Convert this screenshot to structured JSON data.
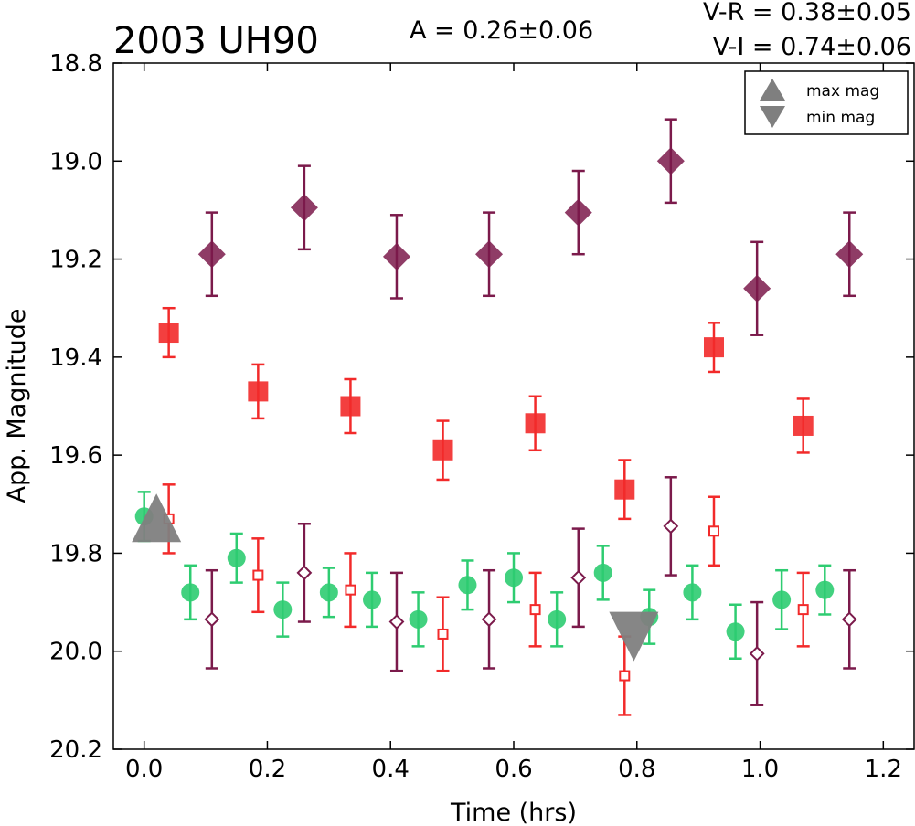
{
  "chart_data": {
    "type": "scatter",
    "title": "2003 UH90",
    "annotations": {
      "amplitude": "A  = 0.26±0.06",
      "v_r": "V-R = 0.38±0.05",
      "v_i": "V-I  = 0.74±0.06"
    },
    "xlabel": "Time (hrs)",
    "ylabel": "App. Magnitude",
    "xlim": [
      -0.05,
      1.25
    ],
    "ylim": [
      20.2,
      18.8
    ],
    "y_inverted": true,
    "xticks": [
      "0.0",
      "0.2",
      "0.4",
      "0.6",
      "0.8",
      "1.0",
      "1.2"
    ],
    "yticks": [
      "18.8",
      "19.0",
      "19.2",
      "19.4",
      "19.6",
      "19.8",
      "20.0",
      "20.2"
    ],
    "grid": false,
    "legend": {
      "position": "top-right",
      "entries": [
        {
          "label": "max mag",
          "marker": "triangle-up",
          "color": "#7f7f7f"
        },
        {
          "label": "min mag",
          "marker": "triangle-down",
          "color": "#7f7f7f"
        }
      ]
    },
    "colors": {
      "V": "#2ecc71",
      "R": "#f22a2a",
      "I": "#7b1a4b",
      "marker_gray": "#7f7f7f"
    },
    "series": [
      {
        "marker": "circle-filled",
        "color": "#2ecc71",
        "points": [
          {
            "x": 0.0,
            "y": 19.725,
            "err": 0.05
          },
          {
            "x": 0.075,
            "y": 19.88,
            "err": 0.055
          },
          {
            "x": 0.15,
            "y": 19.81,
            "err": 0.05
          },
          {
            "x": 0.225,
            "y": 19.915,
            "err": 0.055
          },
          {
            "x": 0.3,
            "y": 19.88,
            "err": 0.05
          },
          {
            "x": 0.37,
            "y": 19.895,
            "err": 0.055
          },
          {
            "x": 0.445,
            "y": 19.935,
            "err": 0.055
          },
          {
            "x": 0.525,
            "y": 19.865,
            "err": 0.05
          },
          {
            "x": 0.6,
            "y": 19.85,
            "err": 0.05
          },
          {
            "x": 0.67,
            "y": 19.935,
            "err": 0.055
          },
          {
            "x": 0.745,
            "y": 19.84,
            "err": 0.055
          },
          {
            "x": 0.82,
            "y": 19.93,
            "err": 0.055
          },
          {
            "x": 0.89,
            "y": 19.88,
            "err": 0.055
          },
          {
            "x": 0.96,
            "y": 19.96,
            "err": 0.055
          },
          {
            "x": 1.035,
            "y": 19.895,
            "err": 0.06
          },
          {
            "x": 1.105,
            "y": 19.875,
            "err": 0.05
          }
        ]
      },
      {
        "marker": "square-filled",
        "color": "#f22a2a",
        "points": [
          {
            "x": 0.04,
            "y": 19.35,
            "err": 0.05
          },
          {
            "x": 0.185,
            "y": 19.47,
            "err": 0.055
          },
          {
            "x": 0.335,
            "y": 19.5,
            "err": 0.055
          },
          {
            "x": 0.485,
            "y": 19.59,
            "err": 0.06
          },
          {
            "x": 0.635,
            "y": 19.535,
            "err": 0.055
          },
          {
            "x": 0.78,
            "y": 19.67,
            "err": 0.06
          },
          {
            "x": 0.925,
            "y": 19.38,
            "err": 0.05
          },
          {
            "x": 1.07,
            "y": 19.54,
            "err": 0.055
          }
        ]
      },
      {
        "marker": "square-open",
        "color": "#f22a2a",
        "points": [
          {
            "x": 0.04,
            "y": 19.73,
            "err": 0.07
          },
          {
            "x": 0.185,
            "y": 19.845,
            "err": 0.075
          },
          {
            "x": 0.335,
            "y": 19.875,
            "err": 0.075
          },
          {
            "x": 0.485,
            "y": 19.965,
            "err": 0.075
          },
          {
            "x": 0.635,
            "y": 19.915,
            "err": 0.075
          },
          {
            "x": 0.78,
            "y": 20.05,
            "err": 0.08
          },
          {
            "x": 0.925,
            "y": 19.755,
            "err": 0.07
          },
          {
            "x": 1.07,
            "y": 19.915,
            "err": 0.075
          }
        ]
      },
      {
        "marker": "diamond-filled",
        "color": "#7b1a4b",
        "points": [
          {
            "x": 0.11,
            "y": 19.19,
            "err": 0.085
          },
          {
            "x": 0.26,
            "y": 19.095,
            "err": 0.085
          },
          {
            "x": 0.41,
            "y": 19.195,
            "err": 0.085
          },
          {
            "x": 0.56,
            "y": 19.19,
            "err": 0.085
          },
          {
            "x": 0.705,
            "y": 19.105,
            "err": 0.085
          },
          {
            "x": 0.855,
            "y": 19.0,
            "err": 0.085
          },
          {
            "x": 0.995,
            "y": 19.26,
            "err": 0.095
          },
          {
            "x": 1.145,
            "y": 19.19,
            "err": 0.085
          }
        ]
      },
      {
        "marker": "diamond-open",
        "color": "#7b1a4b",
        "points": [
          {
            "x": 0.11,
            "y": 19.935,
            "err": 0.1
          },
          {
            "x": 0.26,
            "y": 19.84,
            "err": 0.1
          },
          {
            "x": 0.41,
            "y": 19.94,
            "err": 0.1
          },
          {
            "x": 0.56,
            "y": 19.935,
            "err": 0.1
          },
          {
            "x": 0.705,
            "y": 19.85,
            "err": 0.1
          },
          {
            "x": 0.855,
            "y": 19.745,
            "err": 0.1
          },
          {
            "x": 0.995,
            "y": 20.005,
            "err": 0.105
          },
          {
            "x": 1.145,
            "y": 19.935,
            "err": 0.1
          }
        ]
      }
    ],
    "extrema": [
      {
        "kind": "max mag",
        "marker": "triangle-up",
        "x": 0.02,
        "y": 19.725
      },
      {
        "kind": "min mag",
        "marker": "triangle-down",
        "x": 0.795,
        "y": 19.97
      }
    ]
  }
}
